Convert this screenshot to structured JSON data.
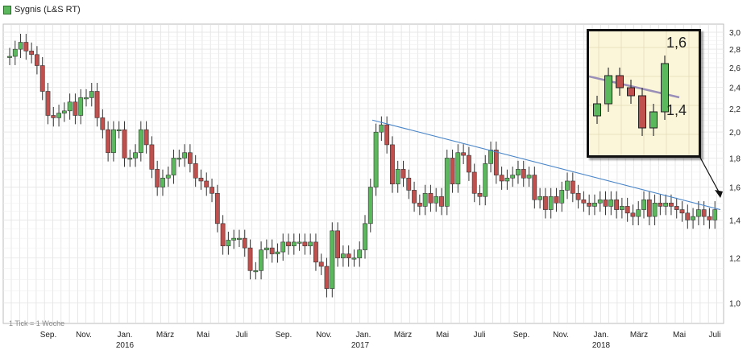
{
  "legend": {
    "label": "Sygnis (L&S RT)"
  },
  "footnote": "1 Tick = 1 Woche",
  "colors": {
    "up": "#5cb85c",
    "down": "#c0504d",
    "wick": "#333333",
    "trendline": "#4a86c8",
    "grid": "#dddddd",
    "inset_bg": "#fbf6d9"
  },
  "chart_data": {
    "type": "candlestick",
    "title": "Sygnis (L&S RT)",
    "xlabel": "",
    "ylabel": "",
    "y_scale": "log",
    "ylim": [
      0.92,
      3.1
    ],
    "y_ticks": [
      "3,0",
      "2,8",
      "2,6",
      "2,4",
      "2,2",
      "2,0",
      "1,8",
      "1,6",
      "1,4",
      "1,2",
      "1,0"
    ],
    "x_month_labels": [
      "Sep.",
      "Nov.",
      "Jan.",
      "März",
      "Mai",
      "Juli",
      "Sep.",
      "Nov.",
      "Jan.",
      "März",
      "Mai",
      "Juli",
      "Sep.",
      "Nov.",
      "Jan.",
      "März",
      "Mai",
      "Juli"
    ],
    "x_year_labels": [
      "2016",
      "2017",
      "2018"
    ],
    "interval": "weekly",
    "series": [
      {
        "values": [
          [
            2.72,
            2.72
          ],
          [
            2.72,
            2.8
          ],
          [
            2.8,
            2.88
          ],
          [
            2.88,
            2.78
          ],
          [
            2.78,
            2.74
          ],
          [
            2.74,
            2.62
          ],
          [
            2.62,
            2.36
          ],
          [
            2.36,
            2.14
          ],
          [
            2.14,
            2.12
          ],
          [
            2.12,
            2.16
          ],
          [
            2.16,
            2.18
          ],
          [
            2.18,
            2.26
          ],
          [
            2.26,
            2.14
          ],
          [
            2.14,
            2.3
          ],
          [
            2.3,
            2.3
          ],
          [
            2.3,
            2.36
          ],
          [
            2.36,
            2.12
          ],
          [
            2.12,
            2.02
          ],
          [
            2.02,
            1.84
          ],
          [
            1.84,
            2.02
          ],
          [
            2.02,
            2.02
          ],
          [
            2.02,
            1.8
          ],
          [
            1.8,
            1.8
          ],
          [
            1.8,
            1.84
          ],
          [
            1.84,
            2.02
          ],
          [
            2.02,
            1.9
          ],
          [
            1.9,
            1.72
          ],
          [
            1.72,
            1.6
          ],
          [
            1.6,
            1.66
          ],
          [
            1.66,
            1.68
          ],
          [
            1.68,
            1.8
          ],
          [
            1.8,
            1.8
          ],
          [
            1.8,
            1.84
          ],
          [
            1.84,
            1.76
          ],
          [
            1.76,
            1.66
          ],
          [
            1.66,
            1.64
          ],
          [
            1.64,
            1.6
          ],
          [
            1.6,
            1.56
          ],
          [
            1.56,
            1.38
          ],
          [
            1.38,
            1.26
          ],
          [
            1.26,
            1.29
          ],
          [
            1.29,
            1.3
          ],
          [
            1.3,
            1.3
          ],
          [
            1.3,
            1.25
          ],
          [
            1.25,
            1.14
          ],
          [
            1.14,
            1.14
          ],
          [
            1.14,
            1.24
          ],
          [
            1.24,
            1.25
          ],
          [
            1.25,
            1.22
          ],
          [
            1.22,
            1.23
          ],
          [
            1.23,
            1.28
          ],
          [
            1.28,
            1.26
          ],
          [
            1.26,
            1.28
          ],
          [
            1.28,
            1.28
          ],
          [
            1.28,
            1.26
          ],
          [
            1.26,
            1.28
          ],
          [
            1.28,
            1.18
          ],
          [
            1.18,
            1.16
          ],
          [
            1.16,
            1.06
          ],
          [
            1.06,
            1.34
          ],
          [
            1.34,
            1.2
          ],
          [
            1.2,
            1.22
          ],
          [
            1.22,
            1.2
          ],
          [
            1.2,
            1.2
          ],
          [
            1.2,
            1.24
          ],
          [
            1.24,
            1.38
          ],
          [
            1.38,
            1.6
          ],
          [
            1.6,
            2.0
          ],
          [
            2.0,
            2.06
          ],
          [
            2.06,
            1.9
          ],
          [
            1.9,
            1.62
          ],
          [
            1.62,
            1.72
          ],
          [
            1.72,
            1.66
          ],
          [
            1.66,
            1.58
          ],
          [
            1.58,
            1.5
          ],
          [
            1.5,
            1.48
          ],
          [
            1.48,
            1.56
          ],
          [
            1.56,
            1.5
          ],
          [
            1.5,
            1.54
          ],
          [
            1.54,
            1.48
          ],
          [
            1.48,
            1.8
          ],
          [
            1.8,
            1.62
          ],
          [
            1.62,
            1.84
          ],
          [
            1.84,
            1.82
          ],
          [
            1.82,
            1.7
          ],
          [
            1.7,
            1.56
          ],
          [
            1.56,
            1.54
          ],
          [
            1.54,
            1.76
          ],
          [
            1.76,
            1.86
          ],
          [
            1.86,
            1.68
          ],
          [
            1.68,
            1.64
          ],
          [
            1.64,
            1.66
          ],
          [
            1.66,
            1.68
          ],
          [
            1.68,
            1.72
          ],
          [
            1.72,
            1.66
          ],
          [
            1.66,
            1.68
          ],
          [
            1.68,
            1.52
          ],
          [
            1.52,
            1.54
          ],
          [
            1.54,
            1.46
          ],
          [
            1.46,
            1.54
          ],
          [
            1.54,
            1.5
          ],
          [
            1.5,
            1.58
          ],
          [
            1.58,
            1.64
          ],
          [
            1.64,
            1.56
          ],
          [
            1.56,
            1.52
          ],
          [
            1.52,
            1.5
          ],
          [
            1.5,
            1.48
          ],
          [
            1.48,
            1.5
          ],
          [
            1.5,
            1.52
          ],
          [
            1.52,
            1.48
          ],
          [
            1.48,
            1.52
          ],
          [
            1.52,
            1.46
          ],
          [
            1.46,
            1.48
          ],
          [
            1.48,
            1.44
          ],
          [
            1.44,
            1.42
          ],
          [
            1.42,
            1.46
          ],
          [
            1.46,
            1.52
          ],
          [
            1.52,
            1.42
          ],
          [
            1.42,
            1.5
          ],
          [
            1.5,
            1.48
          ],
          [
            1.48,
            1.5
          ],
          [
            1.5,
            1.48
          ],
          [
            1.48,
            1.46
          ],
          [
            1.46,
            1.44
          ],
          [
            1.44,
            1.4
          ],
          [
            1.4,
            1.42
          ],
          [
            1.42,
            1.46
          ],
          [
            1.46,
            1.42
          ],
          [
            1.42,
            1.4
          ],
          [
            1.4,
            1.46
          ]
        ]
      }
    ],
    "trendline": [
      [
        2.1,
        1.46
      ]
    ],
    "inset": {
      "labels": [
        "1,6",
        "1,4"
      ],
      "values": [
        [
          1.45,
          1.48
        ],
        [
          1.48,
          1.55
        ],
        [
          1.55,
          1.52
        ],
        [
          1.52,
          1.5
        ],
        [
          1.5,
          1.42
        ],
        [
          1.42,
          1.46
        ],
        [
          1.46,
          1.58
        ]
      ]
    }
  }
}
